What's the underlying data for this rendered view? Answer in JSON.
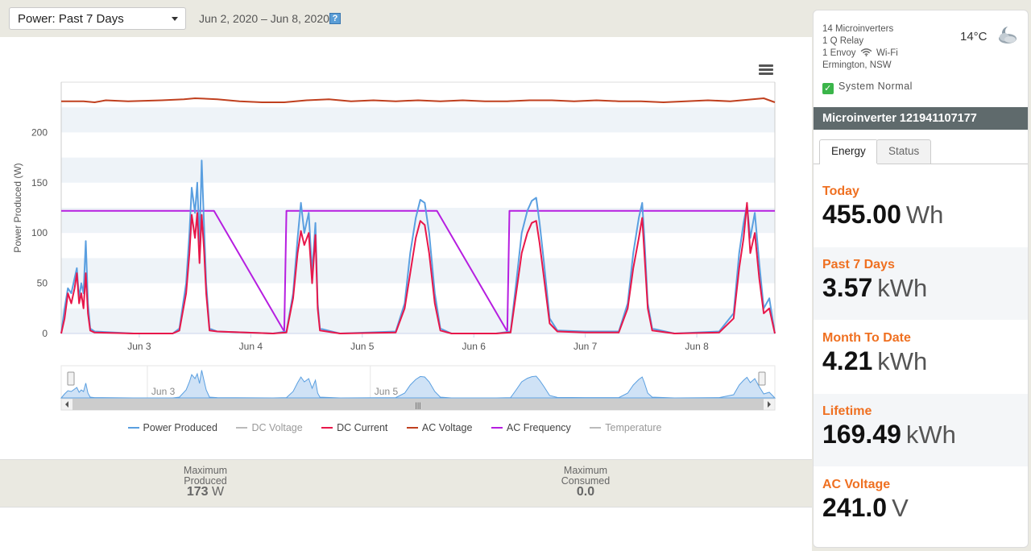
{
  "header": {
    "period_label": "Power: Past 7 Days",
    "date_range": "Jun 2, 2020 – Jun 8, 2020",
    "help_label": "?"
  },
  "chart_data": {
    "type": "line",
    "ylabel": "Power Produced (W)",
    "ylim": [
      0,
      250
    ],
    "yticks": [
      "0",
      "50",
      "100",
      "150",
      "200"
    ],
    "xlim": [
      2.3,
      8.7
    ],
    "xticks": [
      {
        "pos": 3,
        "label": "Jun 3"
      },
      {
        "pos": 4,
        "label": "Jun 4"
      },
      {
        "pos": 5,
        "label": "Jun 5"
      },
      {
        "pos": 6,
        "label": "Jun 6"
      },
      {
        "pos": 7,
        "label": "Jun 7"
      },
      {
        "pos": 8,
        "label": "Jun 8"
      }
    ],
    "navigator_labels": [
      {
        "pos": 3,
        "label": "Jun 3"
      },
      {
        "pos": 5,
        "label": "Jun 5"
      }
    ],
    "grid": true,
    "legend_position": "bottom",
    "series": [
      {
        "name": "Power Produced",
        "color": "#5a9fe0",
        "points": [
          [
            2.3,
            0
          ],
          [
            2.33,
            25
          ],
          [
            2.36,
            45
          ],
          [
            2.39,
            40
          ],
          [
            2.42,
            55
          ],
          [
            2.44,
            65
          ],
          [
            2.46,
            35
          ],
          [
            2.48,
            50
          ],
          [
            2.5,
            40
          ],
          [
            2.52,
            92
          ],
          [
            2.54,
            30
          ],
          [
            2.56,
            5
          ],
          [
            2.6,
            2
          ],
          [
            2.95,
            0
          ],
          [
            3.3,
            0
          ],
          [
            3.36,
            5
          ],
          [
            3.42,
            50
          ],
          [
            3.45,
            100
          ],
          [
            3.47,
            145
          ],
          [
            3.5,
            120
          ],
          [
            3.52,
            150
          ],
          [
            3.54,
            90
          ],
          [
            3.56,
            172
          ],
          [
            3.58,
            110
          ],
          [
            3.6,
            50
          ],
          [
            3.63,
            5
          ],
          [
            3.7,
            2
          ],
          [
            4.2,
            0
          ],
          [
            4.32,
            2
          ],
          [
            4.38,
            40
          ],
          [
            4.42,
            95
          ],
          [
            4.45,
            130
          ],
          [
            4.48,
            100
          ],
          [
            4.52,
            120
          ],
          [
            4.55,
            60
          ],
          [
            4.58,
            110
          ],
          [
            4.6,
            30
          ],
          [
            4.62,
            5
          ],
          [
            4.8,
            0
          ],
          [
            5.3,
            2
          ],
          [
            5.38,
            30
          ],
          [
            5.43,
            80
          ],
          [
            5.48,
            115
          ],
          [
            5.52,
            133
          ],
          [
            5.56,
            130
          ],
          [
            5.6,
            100
          ],
          [
            5.65,
            40
          ],
          [
            5.7,
            5
          ],
          [
            5.8,
            0
          ],
          [
            6.2,
            0
          ],
          [
            6.33,
            2
          ],
          [
            6.38,
            50
          ],
          [
            6.43,
            100
          ],
          [
            6.48,
            122
          ],
          [
            6.52,
            132
          ],
          [
            6.56,
            135
          ],
          [
            6.59,
            110
          ],
          [
            6.63,
            70
          ],
          [
            6.68,
            15
          ],
          [
            6.75,
            3
          ],
          [
            7.0,
            2
          ],
          [
            7.3,
            2
          ],
          [
            7.38,
            30
          ],
          [
            7.43,
            80
          ],
          [
            7.48,
            115
          ],
          [
            7.51,
            130
          ],
          [
            7.53,
            95
          ],
          [
            7.56,
            30
          ],
          [
            7.6,
            5
          ],
          [
            7.8,
            0
          ],
          [
            8.2,
            2
          ],
          [
            8.33,
            20
          ],
          [
            8.38,
            80
          ],
          [
            8.42,
            110
          ],
          [
            8.45,
            128
          ],
          [
            8.48,
            95
          ],
          [
            8.52,
            120
          ],
          [
            8.56,
            70
          ],
          [
            8.6,
            25
          ],
          [
            8.65,
            35
          ],
          [
            8.7,
            0
          ]
        ]
      },
      {
        "name": "DC Voltage",
        "color": "#bbbbbb",
        "points": []
      },
      {
        "name": "DC Current",
        "color": "#e8174a",
        "points": [
          [
            2.3,
            0
          ],
          [
            2.33,
            15
          ],
          [
            2.36,
            40
          ],
          [
            2.39,
            30
          ],
          [
            2.42,
            45
          ],
          [
            2.44,
            60
          ],
          [
            2.46,
            30
          ],
          [
            2.48,
            40
          ],
          [
            2.5,
            25
          ],
          [
            2.52,
            60
          ],
          [
            2.54,
            20
          ],
          [
            2.56,
            3
          ],
          [
            2.6,
            1
          ],
          [
            2.95,
            0
          ],
          [
            3.3,
            0
          ],
          [
            3.36,
            3
          ],
          [
            3.42,
            40
          ],
          [
            3.45,
            80
          ],
          [
            3.47,
            118
          ],
          [
            3.5,
            95
          ],
          [
            3.52,
            120
          ],
          [
            3.54,
            70
          ],
          [
            3.56,
            118
          ],
          [
            3.58,
            85
          ],
          [
            3.6,
            40
          ],
          [
            3.63,
            3
          ],
          [
            3.7,
            2
          ],
          [
            4.2,
            0
          ],
          [
            4.32,
            1
          ],
          [
            4.38,
            35
          ],
          [
            4.42,
            80
          ],
          [
            4.45,
            102
          ],
          [
            4.48,
            88
          ],
          [
            4.52,
            100
          ],
          [
            4.55,
            50
          ],
          [
            4.58,
            98
          ],
          [
            4.6,
            25
          ],
          [
            4.62,
            3
          ],
          [
            4.8,
            0
          ],
          [
            5.3,
            1
          ],
          [
            5.38,
            25
          ],
          [
            5.43,
            60
          ],
          [
            5.48,
            95
          ],
          [
            5.52,
            112
          ],
          [
            5.56,
            108
          ],
          [
            5.6,
            80
          ],
          [
            5.65,
            30
          ],
          [
            5.7,
            3
          ],
          [
            5.8,
            0
          ],
          [
            6.2,
            0
          ],
          [
            6.33,
            1
          ],
          [
            6.38,
            40
          ],
          [
            6.43,
            80
          ],
          [
            6.48,
            100
          ],
          [
            6.52,
            110
          ],
          [
            6.56,
            112
          ],
          [
            6.59,
            90
          ],
          [
            6.63,
            55
          ],
          [
            6.68,
            10
          ],
          [
            6.75,
            2
          ],
          [
            7.0,
            1
          ],
          [
            7.3,
            1
          ],
          [
            7.38,
            25
          ],
          [
            7.43,
            65
          ],
          [
            7.48,
            95
          ],
          [
            7.51,
            115
          ],
          [
            7.53,
            80
          ],
          [
            7.56,
            25
          ],
          [
            7.6,
            3
          ],
          [
            7.8,
            0
          ],
          [
            8.2,
            1
          ],
          [
            8.33,
            15
          ],
          [
            8.38,
            65
          ],
          [
            8.42,
            95
          ],
          [
            8.45,
            130
          ],
          [
            8.48,
            80
          ],
          [
            8.52,
            100
          ],
          [
            8.56,
            55
          ],
          [
            8.6,
            20
          ],
          [
            8.65,
            25
          ],
          [
            8.7,
            0
          ]
        ]
      },
      {
        "name": "AC Voltage",
        "color": "#c0401f",
        "points": [
          [
            2.3,
            231
          ],
          [
            2.5,
            231
          ],
          [
            2.6,
            230
          ],
          [
            2.7,
            232
          ],
          [
            2.9,
            231
          ],
          [
            3.2,
            232
          ],
          [
            3.4,
            233
          ],
          [
            3.5,
            234
          ],
          [
            3.7,
            233
          ],
          [
            3.9,
            231
          ],
          [
            4.1,
            230
          ],
          [
            4.3,
            230
          ],
          [
            4.5,
            232
          ],
          [
            4.7,
            233
          ],
          [
            4.9,
            231
          ],
          [
            5.1,
            232
          ],
          [
            5.3,
            231
          ],
          [
            5.5,
            232
          ],
          [
            5.7,
            231
          ],
          [
            5.9,
            232
          ],
          [
            6.1,
            231
          ],
          [
            6.3,
            231
          ],
          [
            6.5,
            232
          ],
          [
            6.7,
            232
          ],
          [
            6.9,
            231
          ],
          [
            7.1,
            232
          ],
          [
            7.3,
            231
          ],
          [
            7.5,
            231
          ],
          [
            7.7,
            230
          ],
          [
            7.9,
            231
          ],
          [
            8.1,
            232
          ],
          [
            8.3,
            231
          ],
          [
            8.5,
            233
          ],
          [
            8.6,
            234
          ],
          [
            8.7,
            230
          ]
        ]
      },
      {
        "name": "AC Frequency",
        "color": "#b61ee0",
        "points": [
          [
            2.3,
            122
          ],
          [
            3.67,
            122
          ],
          [
            4.3,
            2
          ],
          [
            4.32,
            122
          ],
          [
            5.67,
            122
          ],
          [
            6.3,
            2
          ],
          [
            6.32,
            122
          ],
          [
            8.7,
            122
          ]
        ]
      },
      {
        "name": "Temperature",
        "color": "#bbbbbb",
        "points": []
      }
    ]
  },
  "stats": {
    "max_produced_line1": "Maximum",
    "max_produced_line2": "Produced",
    "max_produced_value": "173",
    "max_produced_unit": "W",
    "max_consumed_line1": "Maximum",
    "max_consumed_line2": "Consumed",
    "max_consumed_value": "0.0"
  },
  "system": {
    "microinverters": "14 Microinverters",
    "relay": "1 Q Relay",
    "envoy_prefix": "1 Envoy",
    "envoy_suffix": "Wi-Fi",
    "location": "Ermington, NSW",
    "temperature": "14°C",
    "weather_icon": "cloudy-night-icon",
    "status": "System Normal"
  },
  "microinverter": {
    "title": "Microinverter 121941107177",
    "tabs": [
      "Energy",
      "Status"
    ],
    "metrics": [
      {
        "label": "Today",
        "value": "455.00",
        "unit": "Wh"
      },
      {
        "label": "Past 7 Days",
        "value": "3.57",
        "unit": "kWh"
      },
      {
        "label": "Month To Date",
        "value": "4.21",
        "unit": "kWh"
      },
      {
        "label": "Lifetime",
        "value": "169.49",
        "unit": "kWh"
      },
      {
        "label": "AC Voltage",
        "value": "241.0",
        "unit": "V"
      }
    ]
  },
  "colors": {
    "accent_orange": "#ef7021",
    "header_bar": "#5f6a6c",
    "status_green": "#3bb54a"
  }
}
